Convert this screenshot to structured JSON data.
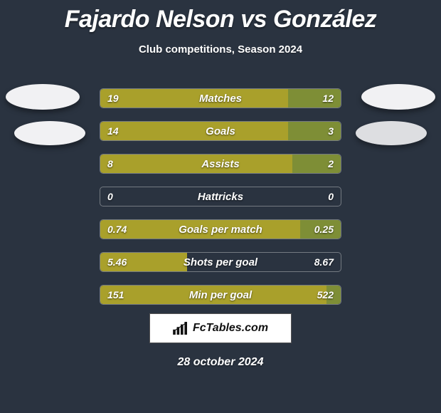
{
  "background_color": "#2a3340",
  "title": "Fajardo Nelson vs González",
  "title_fontsize": 34,
  "title_color": "#ffffff",
  "subtitle": "Club competitions, Season 2024",
  "subtitle_fontsize": 15,
  "watermark_text": "FcTables.com",
  "date": "28 october 2024",
  "avatar_color": "#f1f1f3",
  "bar": {
    "left_color": "#a9a02b",
    "right_color": "#7e8e36",
    "border_color": "rgba(255,255,255,0.35)",
    "height": 28,
    "gap": 18,
    "text_color": "#ffffff",
    "value_fontsize": 14,
    "label_fontsize": 15
  },
  "metrics": [
    {
      "label": "Matches",
      "left_val": "19",
      "right_val": "12",
      "left_pct": 78,
      "right_pct": 22
    },
    {
      "label": "Goals",
      "left_val": "14",
      "right_val": "3",
      "left_pct": 78,
      "right_pct": 22
    },
    {
      "label": "Assists",
      "left_val": "8",
      "right_val": "2",
      "left_pct": 80,
      "right_pct": 20
    },
    {
      "label": "Hattricks",
      "left_val": "0",
      "right_val": "0",
      "left_pct": 0,
      "right_pct": 0
    },
    {
      "label": "Goals per match",
      "left_val": "0.74",
      "right_val": "0.25",
      "left_pct": 83,
      "right_pct": 17
    },
    {
      "label": "Shots per goal",
      "left_val": "5.46",
      "right_val": "8.67",
      "left_pct": 36,
      "right_pct": 0
    },
    {
      "label": "Min per goal",
      "left_val": "151",
      "right_val": "522",
      "left_pct": 94,
      "right_pct": 6
    }
  ]
}
